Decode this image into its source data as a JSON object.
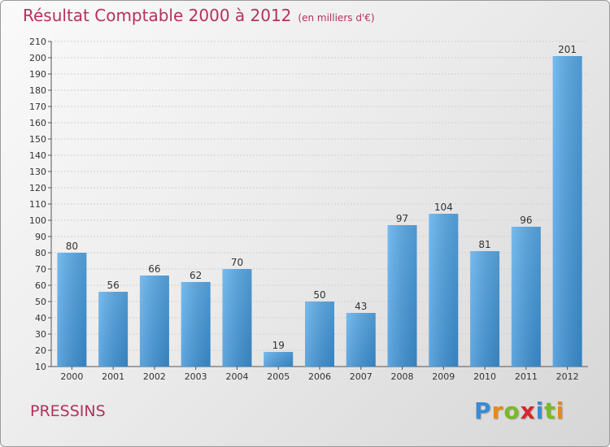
{
  "chart_data": {
    "type": "bar",
    "title": "Résultat Comptable 2000 à 2012",
    "subtitle": "(en milliers d'€)",
    "categories": [
      "2000",
      "2001",
      "2002",
      "2003",
      "2004",
      "2005",
      "2006",
      "2007",
      "2008",
      "2009",
      "2010",
      "2011",
      "2012"
    ],
    "values": [
      80,
      56,
      66,
      62,
      70,
      19,
      50,
      43,
      97,
      104,
      81,
      96,
      201
    ],
    "ylim": [
      10,
      210
    ],
    "ytick_step": 10,
    "xlabel": "",
    "ylabel": "",
    "grid": true,
    "bar_color": "#3d92d6"
  },
  "location": "PRESSINS",
  "brand": {
    "letters": [
      "P",
      "r",
      "o",
      "x",
      "i",
      "t",
      "i"
    ],
    "colors": [
      "#3a8ad4",
      "#e8891c",
      "#7ab929",
      "#d8262c",
      "#3a8ad4",
      "#7ab929",
      "#e8891c"
    ]
  }
}
